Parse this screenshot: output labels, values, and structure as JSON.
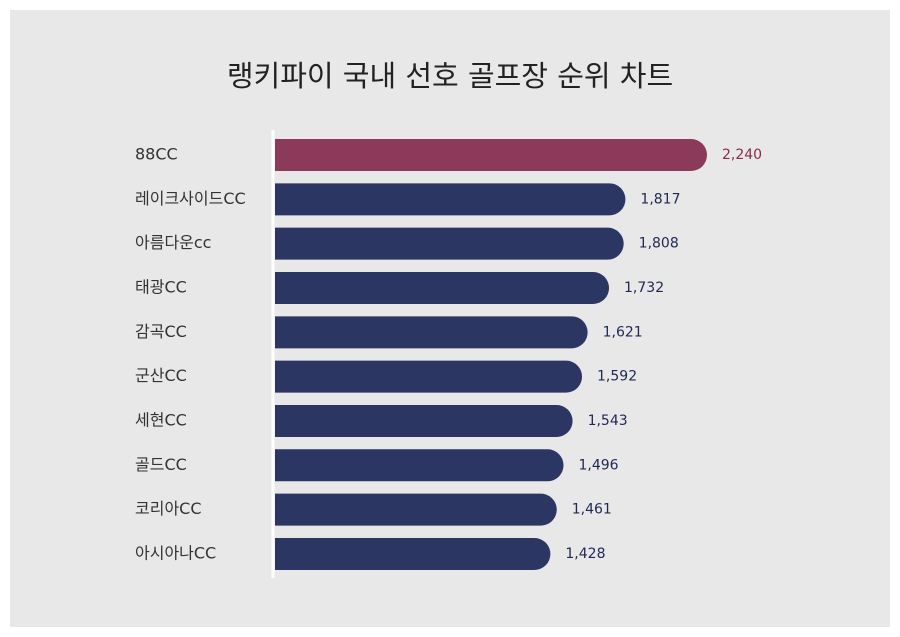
{
  "chart_data": {
    "type": "barh",
    "title": "랭키파이 국내 선호 골프장 순위 차트",
    "categories": [
      "88CC",
      "레이크사이드CC",
      "아름다운cc",
      "태광CC",
      "감곡CC",
      "군산CC",
      "세현CC",
      "골드CC",
      "코리아CC",
      "아시아나CC"
    ],
    "values": [
      2240,
      1817,
      1808,
      1732,
      1621,
      1592,
      1543,
      1496,
      1461,
      1428
    ],
    "value_labels": [
      "2,240",
      "1,817",
      "1,808",
      "1,732",
      "1,621",
      "1,592",
      "1,543",
      "1,496",
      "1,461",
      "1,428"
    ],
    "colors": [
      "#8c3a5a",
      "#2c3662",
      "#2c3662",
      "#2c3662",
      "#2c3662",
      "#2c3662",
      "#2c3662",
      "#2c3662",
      "#2c3662",
      "#2c3662"
    ],
    "xlim": [
      0,
      2240
    ]
  }
}
